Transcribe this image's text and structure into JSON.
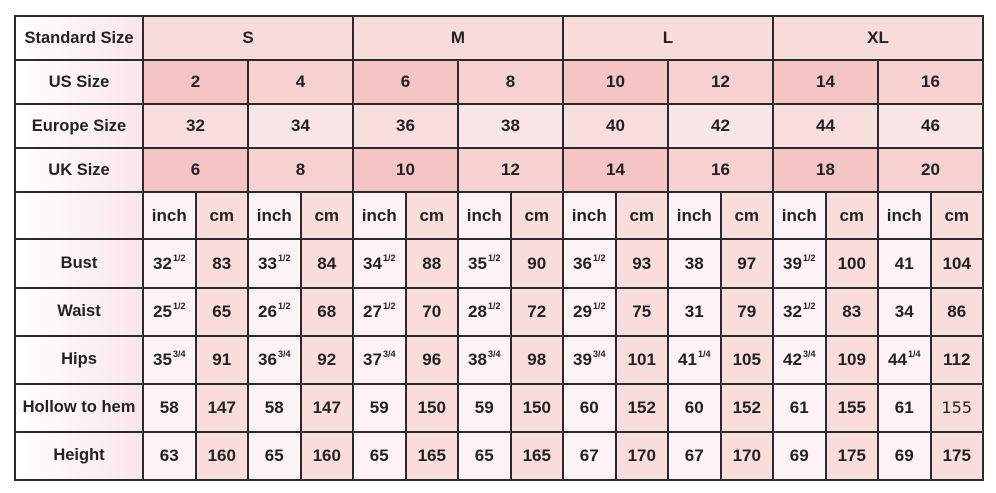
{
  "table": {
    "standard_size": {
      "label": "Standard Size",
      "values": [
        "S",
        "M",
        "L",
        "XL"
      ]
    },
    "us_size": {
      "label": "US Size",
      "values": [
        "2",
        "4",
        "6",
        "8",
        "10",
        "12",
        "14",
        "16"
      ]
    },
    "europe_size": {
      "label": "Europe Size",
      "values": [
        "32",
        "34",
        "36",
        "38",
        "40",
        "42",
        "44",
        "46"
      ]
    },
    "uk_size": {
      "label": "UK Size",
      "values": [
        "6",
        "8",
        "10",
        "12",
        "14",
        "16",
        "18",
        "20"
      ]
    },
    "units": {
      "label": "",
      "inch": "inch",
      "cm": "cm"
    },
    "measurements": [
      {
        "label": "Bust",
        "values": [
          {
            "whole": "32",
            "frac": "1/2"
          },
          {
            "whole": "83"
          },
          {
            "whole": "33",
            "frac": "1/2"
          },
          {
            "whole": "84"
          },
          {
            "whole": "34",
            "frac": "1/2"
          },
          {
            "whole": "88"
          },
          {
            "whole": "35",
            "frac": "1/2"
          },
          {
            "whole": "90"
          },
          {
            "whole": "36",
            "frac": "1/2"
          },
          {
            "whole": "93"
          },
          {
            "whole": "38"
          },
          {
            "whole": "97"
          },
          {
            "whole": "39",
            "frac": "1/2"
          },
          {
            "whole": "100"
          },
          {
            "whole": "41"
          },
          {
            "whole": "104"
          }
        ]
      },
      {
        "label": "Waist",
        "values": [
          {
            "whole": "25",
            "frac": "1/2"
          },
          {
            "whole": "65"
          },
          {
            "whole": "26",
            "frac": "1/2"
          },
          {
            "whole": "68"
          },
          {
            "whole": "27",
            "frac": "1/2"
          },
          {
            "whole": "70"
          },
          {
            "whole": "28",
            "frac": "1/2"
          },
          {
            "whole": "72"
          },
          {
            "whole": "29",
            "frac": "1/2"
          },
          {
            "whole": "75"
          },
          {
            "whole": "31"
          },
          {
            "whole": "79"
          },
          {
            "whole": "32",
            "frac": "1/2"
          },
          {
            "whole": "83"
          },
          {
            "whole": "34"
          },
          {
            "whole": "86"
          }
        ]
      },
      {
        "label": "Hips",
        "values": [
          {
            "whole": "35",
            "frac": "3/4"
          },
          {
            "whole": "91"
          },
          {
            "whole": "36",
            "frac": "3/4"
          },
          {
            "whole": "92"
          },
          {
            "whole": "37",
            "frac": "3/4"
          },
          {
            "whole": "96"
          },
          {
            "whole": "38",
            "frac": "3/4"
          },
          {
            "whole": "98"
          },
          {
            "whole": "39",
            "frac": "3/4"
          },
          {
            "whole": "101"
          },
          {
            "whole": "41",
            "frac": "1/4"
          },
          {
            "whole": "105"
          },
          {
            "whole": "42",
            "frac": "3/4"
          },
          {
            "whole": "109"
          },
          {
            "whole": "44",
            "frac": "1/4"
          },
          {
            "whole": "112"
          }
        ]
      },
      {
        "label": "Hollow to hem",
        "values": [
          {
            "whole": "58"
          },
          {
            "whole": "147"
          },
          {
            "whole": "58"
          },
          {
            "whole": "147"
          },
          {
            "whole": "59"
          },
          {
            "whole": "150"
          },
          {
            "whole": "59"
          },
          {
            "whole": "150"
          },
          {
            "whole": "60"
          },
          {
            "whole": "152"
          },
          {
            "whole": "60"
          },
          {
            "whole": "152"
          },
          {
            "whole": "61"
          },
          {
            "whole": "155"
          },
          {
            "whole": "61"
          },
          {
            "whole": "155",
            "plain": true
          }
        ]
      },
      {
        "label": "Height",
        "values": [
          {
            "whole": "63"
          },
          {
            "whole": "160"
          },
          {
            "whole": "65"
          },
          {
            "whole": "160"
          },
          {
            "whole": "65"
          },
          {
            "whole": "165"
          },
          {
            "whole": "65"
          },
          {
            "whole": "165"
          },
          {
            "whole": "67"
          },
          {
            "whole": "170"
          },
          {
            "whole": "67"
          },
          {
            "whole": "170"
          },
          {
            "whole": "69"
          },
          {
            "whole": "175"
          },
          {
            "whole": "69"
          },
          {
            "whole": "175"
          }
        ]
      }
    ]
  },
  "colors": {
    "border": "#2a2a2a",
    "header_pink": "#f5c4c4",
    "cm_pink": "#f9dcdc",
    "inch_white": "#fdf3f5"
  }
}
